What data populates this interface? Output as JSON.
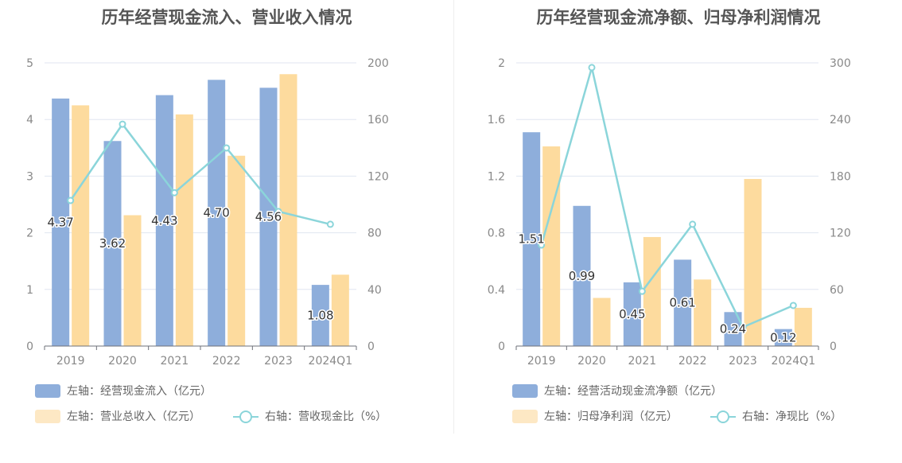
{
  "chart_data": [
    {
      "type": "bar+line",
      "title": "历年经营现金流入、营业收入情况",
      "categories": [
        "2019",
        "2020",
        "2021",
        "2022",
        "2023",
        "2024Q1"
      ],
      "y_left": {
        "ylim": [
          0,
          5
        ],
        "ticks": [
          "0",
          "1",
          "2",
          "3",
          "4",
          "5"
        ]
      },
      "y_right": {
        "ylim": [
          0,
          200
        ],
        "ticks": [
          "0",
          "40",
          "80",
          "120",
          "160",
          "200"
        ]
      },
      "grid": true,
      "series": [
        {
          "name": "左轴：经营现金流入（亿元）",
          "kind": "bar",
          "axis": "left",
          "color": "#8eaedb",
          "values": [
            4.37,
            3.62,
            4.43,
            4.7,
            4.56,
            1.08
          ],
          "labels": [
            "4.37",
            "3.62",
            "4.43",
            "4.70",
            "4.56",
            "1.08"
          ]
        },
        {
          "name": "左轴：营业总收入（亿元）",
          "kind": "bar",
          "axis": "left",
          "color": "#fddb9e",
          "values": [
            4.25,
            2.31,
            4.09,
            3.36,
            4.8,
            1.26
          ]
        },
        {
          "name": "右轴：营收现金比（%）",
          "kind": "line",
          "axis": "right",
          "color": "#8bd5da",
          "values": [
            102.8,
            156.7,
            108.3,
            139.9,
            95.0,
            86.0
          ]
        }
      ],
      "legend_position": "bottom-left"
    },
    {
      "type": "bar+line",
      "title": "历年经营现金流净额、归母净利润情况",
      "categories": [
        "2019",
        "2020",
        "2021",
        "2022",
        "2023",
        "2024Q1"
      ],
      "y_left": {
        "ylim": [
          0,
          2
        ],
        "ticks": [
          "0",
          "0.4",
          "0.8",
          "1.2",
          "1.6",
          "2"
        ]
      },
      "y_right": {
        "ylim": [
          0,
          300
        ],
        "ticks": [
          "0",
          "60",
          "120",
          "180",
          "240",
          "300"
        ]
      },
      "grid": true,
      "series": [
        {
          "name": "左轴：经营活动现金流净额（亿元）",
          "kind": "bar",
          "axis": "left",
          "color": "#8eaedb",
          "values": [
            1.51,
            0.99,
            0.45,
            0.61,
            0.24,
            0.12
          ],
          "labels": [
            "1.51",
            "0.99",
            "0.45",
            "0.61",
            "0.24",
            "0.12"
          ]
        },
        {
          "name": "左轴：归母净利润（亿元）",
          "kind": "bar",
          "axis": "left",
          "color": "#fddb9e",
          "values": [
            1.41,
            0.34,
            0.77,
            0.47,
            1.18,
            0.27
          ]
        },
        {
          "name": "右轴：净现比（%）",
          "kind": "line",
          "axis": "right",
          "color": "#8bd5da",
          "values": [
            107,
            295,
            58,
            129,
            20,
            43
          ]
        }
      ],
      "legend_position": "bottom-left"
    }
  ]
}
